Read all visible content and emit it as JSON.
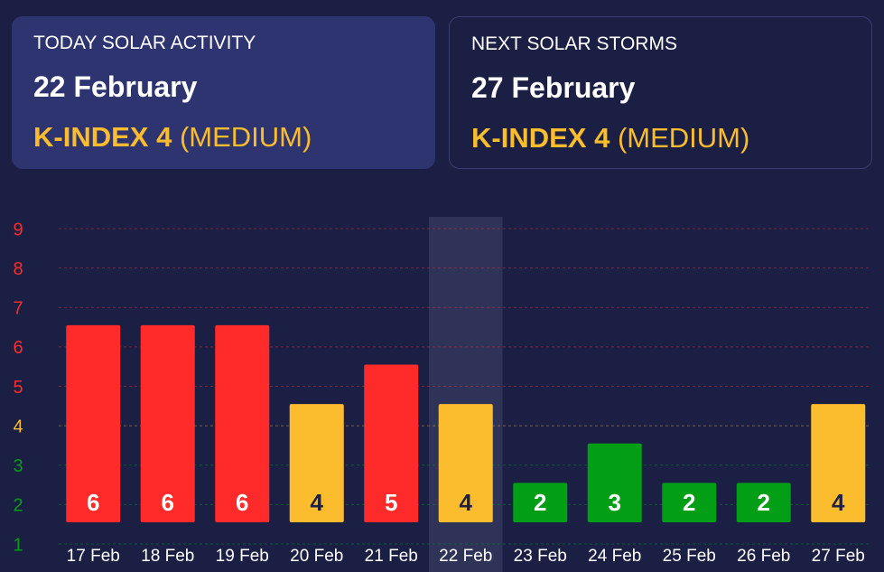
{
  "cards": [
    {
      "label": "TODAY SOLAR ACTIVITY",
      "date": "22 February",
      "kindex": "K-INDEX 4",
      "level": "(MEDIUM)"
    },
    {
      "label": "NEXT SOLAR STORMS",
      "date": "27 February",
      "kindex": "K-INDEX 4",
      "level": "(MEDIUM)"
    }
  ],
  "chart_data": {
    "type": "bar",
    "categories": [
      "17 Feb",
      "18 Feb",
      "19 Feb",
      "20 Feb",
      "21 Feb",
      "22 Feb",
      "23 Feb",
      "24 Feb",
      "25 Feb",
      "26 Feb",
      "27 Feb"
    ],
    "values": [
      6,
      6,
      6,
      4,
      5,
      4,
      2,
      3,
      2,
      2,
      4
    ],
    "colors": [
      "#ff2b2b",
      "#ff2b2b",
      "#ff2b2b",
      "#fbbd2e",
      "#ff2b2b",
      "#fbbd2e",
      "#019e16",
      "#019e16",
      "#019e16",
      "#019e16",
      "#fbbd2e"
    ],
    "ylim": [
      1,
      9
    ],
    "yticks": [
      1,
      2,
      3,
      4,
      5,
      6,
      7,
      8,
      9
    ],
    "ytick_colors": [
      "#019e16",
      "#019e16",
      "#019e16",
      "#fbbd2e",
      "#ff2b2b",
      "#ff2b2b",
      "#ff2b2b",
      "#ff2b2b",
      "#ff2b2b"
    ],
    "highlight_index": 5,
    "grid": true
  }
}
